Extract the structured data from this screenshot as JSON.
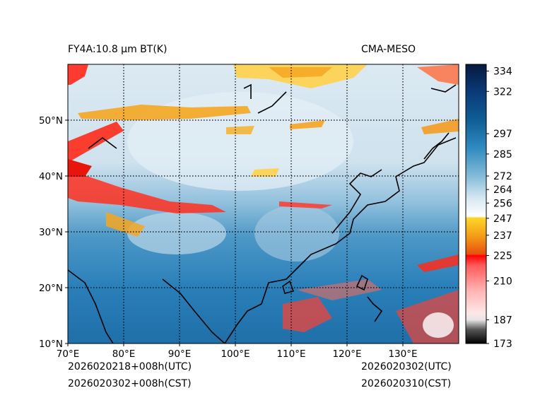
{
  "header": {
    "title_left": "FY4A:10.8 µm BT(K)",
    "title_right": "CMA-MESO"
  },
  "footer": {
    "init_utc": "2026020218+008h(UTC)",
    "init_cst": "2026020302+008h(CST)",
    "valid_utc": "2026020302(UTC)",
    "valid_cst": "2026020310(CST)"
  },
  "map": {
    "lon_range": [
      70,
      140
    ],
    "lat_range": [
      10,
      60
    ],
    "lon_ticks": [
      "70°E",
      "80°E",
      "90°E",
      "100°E",
      "110°E",
      "120°E",
      "130°E"
    ],
    "lat_ticks": [
      "10°N",
      "20°N",
      "30°N",
      "40°N",
      "50°N"
    ],
    "grid": "dotted"
  },
  "colorbar": {
    "range": [
      173,
      338
    ],
    "tick_values": [
      173,
      187,
      210,
      225,
      237,
      247,
      256,
      264,
      272,
      285,
      297,
      322,
      334
    ],
    "tick_labels": [
      "173",
      "187",
      "210",
      "225",
      "237",
      "247",
      "256",
      "264",
      "272",
      "285",
      "297",
      "322",
      "334"
    ],
    "colors": {
      "cold": "#000000",
      "gray": "#e6e6e6",
      "red": "#ff0000",
      "orange": "#f07a10",
      "yellow": "#ffd52a",
      "white": "#ffffff",
      "lightblue": "#a9cde1",
      "blue": "#1f77b4",
      "navy": "#0b2d6b",
      "darknavy": "#07193f"
    }
  }
}
